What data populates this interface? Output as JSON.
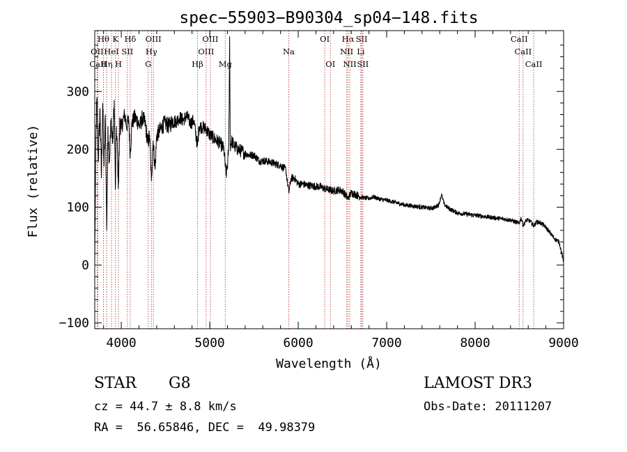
{
  "chart_data": {
    "type": "line",
    "title": "spec−55903−B90304_sp04−148.fits",
    "xlabel": "Wavelength (Å)",
    "ylabel": "Flux (relative)",
    "xlim": [
      3700,
      9000
    ],
    "ylim": [
      -110,
      405
    ],
    "x_ticks": [
      4000,
      5000,
      6000,
      7000,
      8000,
      9000
    ],
    "x_tick_labels": [
      "4000",
      "5000",
      "6000",
      "7000",
      "8000",
      "9000"
    ],
    "y_ticks": [
      -100,
      0,
      100,
      200,
      300
    ],
    "y_tick_labels": [
      "−100",
      "0",
      "100",
      "200",
      "300"
    ],
    "series": [
      {
        "name": "spectrum",
        "points": [
          [
            3700,
            0
          ],
          [
            3712,
            210
          ],
          [
            3725,
            290
          ],
          [
            3740,
            180
          ],
          [
            3760,
            270
          ],
          [
            3775,
            150
          ],
          [
            3790,
            280
          ],
          [
            3805,
            170
          ],
          [
            3820,
            260
          ],
          [
            3835,
            60
          ],
          [
            3850,
            240
          ],
          [
            3865,
            180
          ],
          [
            3885,
            250
          ],
          [
            3905,
            210
          ],
          [
            3920,
            285
          ],
          [
            3933,
            130
          ],
          [
            3945,
            240
          ],
          [
            3968,
            140
          ],
          [
            3985,
            255
          ],
          [
            4000,
            235
          ],
          [
            4020,
            250
          ],
          [
            4040,
            260
          ],
          [
            4060,
            240
          ],
          [
            4085,
            250
          ],
          [
            4101,
            190
          ],
          [
            4120,
            245
          ],
          [
            4150,
            255
          ],
          [
            4180,
            250
          ],
          [
            4210,
            240
          ],
          [
            4240,
            255
          ],
          [
            4270,
            245
          ],
          [
            4300,
            210
          ],
          [
            4320,
            225
          ],
          [
            4340,
            145
          ],
          [
            4360,
            215
          ],
          [
            4383,
            165
          ],
          [
            4400,
            225
          ],
          [
            4430,
            230
          ],
          [
            4460,
            240
          ],
          [
            4500,
            245
          ],
          [
            4540,
            240
          ],
          [
            4580,
            250
          ],
          [
            4620,
            248
          ],
          [
            4660,
            255
          ],
          [
            4700,
            250
          ],
          [
            4740,
            258
          ],
          [
            4780,
            245
          ],
          [
            4820,
            250
          ],
          [
            4861,
            205
          ],
          [
            4880,
            240
          ],
          [
            4920,
            238
          ],
          [
            4960,
            235
          ],
          [
            5000,
            225
          ],
          [
            5040,
            220
          ],
          [
            5080,
            215
          ],
          [
            5120,
            210
          ],
          [
            5160,
            200
          ],
          [
            5184,
            155
          ],
          [
            5200,
            170
          ],
          [
            5215,
            205
          ],
          [
            5225,
            395
          ],
          [
            5232,
            205
          ],
          [
            5245,
            215
          ],
          [
            5280,
            205
          ],
          [
            5320,
            200
          ],
          [
            5380,
            195
          ],
          [
            5440,
            190
          ],
          [
            5500,
            190
          ],
          [
            5560,
            180
          ],
          [
            5620,
            180
          ],
          [
            5680,
            178
          ],
          [
            5740,
            175
          ],
          [
            5800,
            172
          ],
          [
            5860,
            165
          ],
          [
            5893,
            125
          ],
          [
            5920,
            150
          ],
          [
            5960,
            150
          ],
          [
            6000,
            140
          ],
          [
            6050,
            140
          ],
          [
            6100,
            138
          ],
          [
            6150,
            137
          ],
          [
            6200,
            136
          ],
          [
            6250,
            135
          ],
          [
            6300,
            132
          ],
          [
            6350,
            130
          ],
          [
            6400,
            128
          ],
          [
            6450,
            130
          ],
          [
            6500,
            128
          ],
          [
            6563,
            115
          ],
          [
            6600,
            125
          ],
          [
            6650,
            122
          ],
          [
            6700,
            118
          ],
          [
            6750,
            116
          ],
          [
            6800,
            115
          ],
          [
            6850,
            118
          ],
          [
            6900,
            115
          ],
          [
            6950,
            113
          ],
          [
            7000,
            112
          ],
          [
            7050,
            110
          ],
          [
            7100,
            108
          ],
          [
            7150,
            106
          ],
          [
            7200,
            104
          ],
          [
            7300,
            102
          ],
          [
            7400,
            100
          ],
          [
            7500,
            98
          ],
          [
            7550,
            100
          ],
          [
            7590,
            105
          ],
          [
            7620,
            122
          ],
          [
            7650,
            105
          ],
          [
            7700,
            98
          ],
          [
            7800,
            90
          ],
          [
            7900,
            88
          ],
          [
            8000,
            86
          ],
          [
            8100,
            84
          ],
          [
            8200,
            82
          ],
          [
            8300,
            80
          ],
          [
            8400,
            78
          ],
          [
            8498,
            72
          ],
          [
            8520,
            82
          ],
          [
            8542,
            68
          ],
          [
            8580,
            78
          ],
          [
            8620,
            76
          ],
          [
            8662,
            68
          ],
          [
            8700,
            75
          ],
          [
            8750,
            72
          ],
          [
            8800,
            65
          ],
          [
            8850,
            55
          ],
          [
            8900,
            45
          ],
          [
            8950,
            40
          ],
          [
            9000,
            5
          ]
        ]
      }
    ],
    "lines": [
      {
        "label": "CaII",
        "x": 3737,
        "row": 2
      },
      {
        "label": "OII",
        "x": 3727,
        "row": 1
      },
      {
        "label": "Hθ",
        "x": 3798,
        "row": 0
      },
      {
        "label": "Hη",
        "x": 3835,
        "row": 2
      },
      {
        "label": "HeI",
        "x": 3889,
        "row": 1
      },
      {
        "label": "K",
        "x": 3934,
        "row": 0
      },
      {
        "label": "SII",
        "x": 4069,
        "row": 1
      },
      {
        "label": "H",
        "x": 3968,
        "row": 2
      },
      {
        "label": "Hδ",
        "x": 4101,
        "row": 0
      },
      {
        "label": "OIII",
        "x": 4363,
        "row": 0
      },
      {
        "label": "Hγ",
        "x": 4340,
        "row": 1
      },
      {
        "label": "G",
        "x": 4304,
        "row": 2
      },
      {
        "label": "Hβ",
        "x": 4861,
        "row": 2
      },
      {
        "label": "OIII",
        "x": 5007,
        "row": 0
      },
      {
        "label": "OIII",
        "x": 4959,
        "row": 1
      },
      {
        "label": "Mg",
        "x": 5175,
        "row": 2
      },
      {
        "label": "Na",
        "x": 5893,
        "row": 1
      },
      {
        "label": "OI",
        "x": 6300,
        "row": 0
      },
      {
        "label": "OI",
        "x": 6364,
        "row": 2
      },
      {
        "label": "Hα",
        "x": 6563,
        "row": 0
      },
      {
        "label": "NII",
        "x": 6548,
        "row": 1
      },
      {
        "label": "NII",
        "x": 6583,
        "row": 2
      },
      {
        "label": "SII",
        "x": 6717,
        "row": 0
      },
      {
        "label": "Li",
        "x": 6708,
        "row": 1
      },
      {
        "label": "SII",
        "x": 6731,
        "row": 2
      },
      {
        "label": "CaII",
        "x": 8498,
        "row": 0
      },
      {
        "label": "CaII",
        "x": 8542,
        "row": 1
      },
      {
        "label": "CaII",
        "x": 8662,
        "row": 2
      }
    ],
    "colors": {
      "trace": "#000000",
      "line_marker": "#b22222"
    }
  },
  "info": {
    "object_type": "STAR",
    "subclass": "G8",
    "survey": "LAMOST DR3",
    "redshift": "cz = 44.7 ± 8.8 km/s",
    "obs_date": "Obs-Date: 20111207",
    "coords": "RA =  56.65846, DEC =  49.98379"
  }
}
